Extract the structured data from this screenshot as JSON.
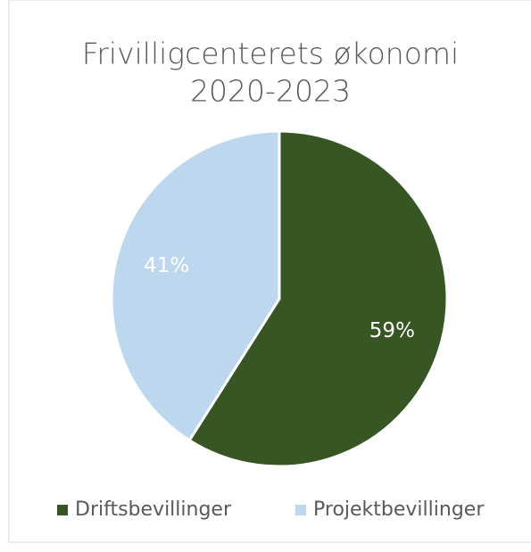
{
  "chart_data": {
    "type": "pie",
    "title": [
      "Frivilligcenterets økonomi",
      "2020-2023"
    ],
    "categories": [
      "Driftsbevillinger",
      "Projektbevillinger"
    ],
    "values": [
      59,
      41
    ],
    "value_labels": [
      "59%",
      "41%"
    ],
    "colors": [
      "#375623",
      "#bdd7ee"
    ],
    "legend": "bottom"
  }
}
